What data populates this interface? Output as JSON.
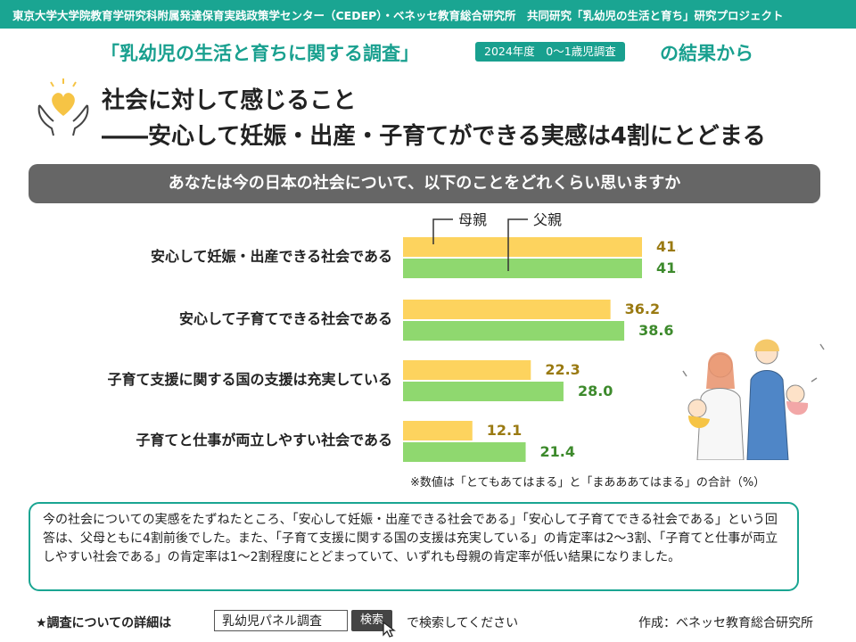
{
  "header": {
    "project_line": "東京大学大学院教育学研究科附属発達保育実践政策学センター（CEDEP）・ベネッセ教育総合研究所　共同研究「乳幼児の生活と育ち」研究プロジェクト"
  },
  "survey": {
    "name": "「乳幼児の生活と育ちに関する調査」",
    "badge": "2024年度　0～1歳児調査",
    "suffix": "の結果から"
  },
  "title": {
    "line1": "社会に対して感じること",
    "line2": "――安心して妊娠・出産・子育てができる実感は4割にとどまる"
  },
  "question": "あなたは今の日本の社会について、以下のことをどれくらい思いますか",
  "chart_data": {
    "type": "bar",
    "orientation": "horizontal",
    "categories": [
      "安心して妊娠・出産できる社会である",
      "安心して子育てできる社会である",
      "子育て支援に関する国の支援は充実している",
      "子育てと仕事が両立しやすい社会である"
    ],
    "series": [
      {
        "name": "母親",
        "values": [
          41.7,
          36.2,
          22.3,
          12.1
        ],
        "color": "#fdd35e",
        "label_color": "#9a7a12"
      },
      {
        "name": "父親",
        "values": [
          41.7,
          38.6,
          28.0,
          21.4
        ],
        "color": "#8fd86f",
        "label_color": "#3d8a2c"
      }
    ],
    "xlim": [
      0,
      45
    ],
    "value_labels": [
      "41.7",
      "36.2",
      "22.3",
      "12.1",
      "41.7",
      "38.6",
      "28.0",
      "21.4"
    ],
    "legend_placement": "top-callouts",
    "grid": false
  },
  "footnote": "※数値は「とてもあてはまる」と「まあああてはまる」の合計（%）",
  "summary": "今の社会についての実感をたずねたところ、「安心して妊娠・出産できる社会である」「安心して子育てできる社会である」という回答は、父母ともに4割前後でした。また、「子育て支援に関する国の支援は充実している」の肯定率は2～3割、「子育てと仕事が両立しやすい社会である」の肯定率は1～2割程度にとどまっていて、いずれも母親の肯定率が低い結果になりました。",
  "bottom": {
    "prefix": "★調査についての詳細は",
    "search_value": "乳幼児パネル調査",
    "search_button": "検索",
    "suffix": "で検索してください"
  },
  "credit": "作成：ベネッセ教育総合研究所",
  "colors": {
    "accent": "#1aa592",
    "mother_bar": "#fdd35e",
    "father_bar": "#8fd86f",
    "question_bg": "#666666"
  },
  "icons": [
    "heart-hands-icon",
    "family-illustration",
    "cursor-icon"
  ]
}
